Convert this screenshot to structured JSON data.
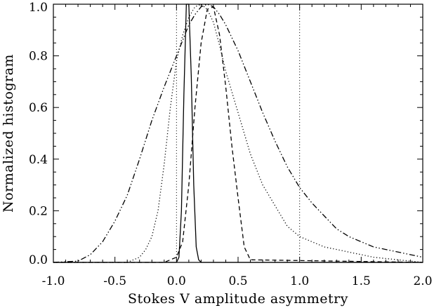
{
  "chart_data": {
    "type": "line",
    "title": "",
    "xlabel": "Stokes V amplitude asymmetry",
    "ylabel": "Normalized histogram",
    "xlim": [
      -1.0,
      2.0
    ],
    "ylim": [
      0.0,
      1.0
    ],
    "xticks": [
      "-1.0",
      "-0.5",
      "0.0",
      "0.5",
      "1.0",
      "1.5",
      "2.0"
    ],
    "xtick_values": [
      -1.0,
      -0.5,
      0.0,
      0.5,
      1.0,
      1.5,
      2.0
    ],
    "yticks": [
      "0.0",
      "0.2",
      "0.4",
      "0.6",
      "0.8",
      "1.0"
    ],
    "ytick_values": [
      0.0,
      0.2,
      0.4,
      0.6,
      0.8,
      1.0
    ],
    "reference_lines_x": [
      0.0,
      1.0
    ],
    "grid": false,
    "legend": "none",
    "series": [
      {
        "style": "solid",
        "x": [
          -1.0,
          0.0,
          0.02,
          0.04,
          0.06,
          0.08,
          0.1,
          0.12,
          0.14,
          0.16,
          0.18,
          0.2,
          2.0
        ],
        "y": [
          0.0,
          0.0,
          0.02,
          0.2,
          0.65,
          1.0,
          1.0,
          0.72,
          0.3,
          0.06,
          0.01,
          0.0,
          0.0
        ]
      },
      {
        "style": "dashed",
        "x": [
          -1.0,
          -0.1,
          0.0,
          0.05,
          0.1,
          0.15,
          0.2,
          0.25,
          0.3,
          0.35,
          0.4,
          0.45,
          0.5,
          0.55,
          0.6,
          2.0
        ],
        "y": [
          0.0,
          0.0,
          0.02,
          0.08,
          0.3,
          0.6,
          0.85,
          0.98,
          0.99,
          0.88,
          0.68,
          0.45,
          0.25,
          0.06,
          0.01,
          0.0
        ]
      },
      {
        "style": "dotted",
        "x": [
          -1.0,
          -0.4,
          -0.3,
          -0.25,
          -0.2,
          -0.15,
          -0.1,
          -0.05,
          0.0,
          0.05,
          0.1,
          0.15,
          0.2,
          0.25,
          0.3,
          0.35,
          0.4,
          0.5,
          0.6,
          0.7,
          0.8,
          0.9,
          1.0,
          1.2,
          1.4,
          1.6,
          1.8,
          2.0
        ],
        "y": [
          0.0,
          0.0,
          0.02,
          0.05,
          0.1,
          0.2,
          0.38,
          0.6,
          0.78,
          0.88,
          0.95,
          0.99,
          1.0,
          0.98,
          0.93,
          0.84,
          0.74,
          0.58,
          0.42,
          0.3,
          0.22,
          0.14,
          0.1,
          0.06,
          0.04,
          0.02,
          0.01,
          0.0
        ]
      },
      {
        "style": "dash-dot-dot",
        "x": [
          -1.0,
          -0.8,
          -0.7,
          -0.6,
          -0.5,
          -0.4,
          -0.3,
          -0.2,
          -0.1,
          0.0,
          0.05,
          0.1,
          0.15,
          0.2,
          0.25,
          0.3,
          0.35,
          0.4,
          0.5,
          0.6,
          0.7,
          0.8,
          0.9,
          1.0,
          1.1,
          1.2,
          1.3,
          1.4,
          1.5,
          1.6,
          1.7,
          1.8,
          1.9,
          2.0
        ],
        "y": [
          0.0,
          0.005,
          0.03,
          0.08,
          0.16,
          0.26,
          0.4,
          0.55,
          0.68,
          0.8,
          0.86,
          0.92,
          0.96,
          0.99,
          1.0,
          0.99,
          0.96,
          0.92,
          0.82,
          0.7,
          0.58,
          0.47,
          0.37,
          0.29,
          0.23,
          0.18,
          0.13,
          0.1,
          0.08,
          0.06,
          0.05,
          0.04,
          0.03,
          0.02
        ]
      }
    ]
  }
}
